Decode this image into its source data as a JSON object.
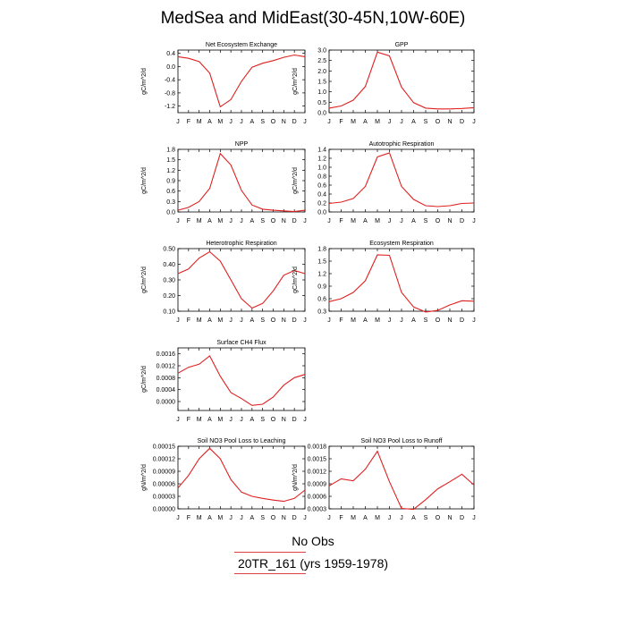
{
  "title": "MedSea and MidEast(30-45N,10W-60E)",
  "legend": {
    "obs_label": "No Obs",
    "model_label": "20TR_161 (yrs 1959-1978)",
    "line_color": "#e02020"
  },
  "chart_data": [
    {
      "type": "line",
      "title": "Net Ecosystem Exchange",
      "ylabel": "gC/m^2/d",
      "categories": [
        "J",
        "F",
        "M",
        "A",
        "M",
        "J",
        "J",
        "A",
        "S",
        "O",
        "N",
        "D",
        "J"
      ],
      "yticks": [
        "0.4",
        "0.0",
        "-0.4",
        "-0.8",
        "-1.2"
      ],
      "ylim": [
        -1.4,
        0.5
      ],
      "series": [
        {
          "values": [
            0.3,
            0.25,
            0.15,
            -0.2,
            -1.22,
            -1.0,
            -0.45,
            -0.02,
            0.1,
            0.18,
            0.28,
            0.35,
            0.3
          ]
        }
      ]
    },
    {
      "type": "line",
      "title": "GPP",
      "ylabel": "gC/m^2/d",
      "categories": [
        "J",
        "F",
        "M",
        "A",
        "M",
        "J",
        "J",
        "A",
        "S",
        "O",
        "N",
        "D",
        "J"
      ],
      "yticks": [
        "0.0",
        "0.5",
        "1.0",
        "1.5",
        "2.0",
        "2.5",
        "3.0"
      ],
      "ylim": [
        0,
        3.0
      ],
      "series": [
        {
          "values": [
            0.22,
            0.32,
            0.6,
            1.25,
            2.9,
            2.72,
            1.22,
            0.48,
            0.22,
            0.18,
            0.18,
            0.2,
            0.24
          ]
        }
      ]
    },
    {
      "type": "line",
      "title": "NPP",
      "ylabel": "gC/m^2/d",
      "categories": [
        "J",
        "F",
        "M",
        "A",
        "M",
        "J",
        "J",
        "A",
        "S",
        "O",
        "N",
        "D",
        "J"
      ],
      "yticks": [
        "0.0",
        "0.3",
        "0.6",
        "0.9",
        "1.2",
        "1.5",
        "1.8"
      ],
      "ylim": [
        0,
        1.8
      ],
      "series": [
        {
          "values": [
            0.05,
            0.13,
            0.3,
            0.68,
            1.68,
            1.35,
            0.62,
            0.2,
            0.08,
            0.05,
            0.03,
            0.01,
            0.05
          ]
        }
      ]
    },
    {
      "type": "line",
      "title": "Autotrophic Respiration",
      "ylabel": "gC/m^2/d",
      "categories": [
        "J",
        "F",
        "M",
        "A",
        "M",
        "J",
        "J",
        "A",
        "S",
        "O",
        "N",
        "D",
        "J"
      ],
      "yticks": [
        "0.0",
        "0.2",
        "0.4",
        "0.6",
        "0.8",
        "1.0",
        "1.2",
        "1.4"
      ],
      "ylim": [
        0,
        1.4
      ],
      "series": [
        {
          "values": [
            0.19,
            0.22,
            0.3,
            0.57,
            1.23,
            1.32,
            0.57,
            0.28,
            0.14,
            0.12,
            0.14,
            0.19,
            0.2
          ]
        }
      ]
    },
    {
      "type": "line",
      "title": "Heterotrophic Respiration",
      "ylabel": "gC/m^2/d",
      "categories": [
        "J",
        "F",
        "M",
        "A",
        "M",
        "J",
        "J",
        "A",
        "S",
        "O",
        "N",
        "D",
        "J"
      ],
      "yticks": [
        "0.10",
        "0.20",
        "0.30",
        "0.40",
        "0.50"
      ],
      "ylim": [
        0.1,
        0.5
      ],
      "series": [
        {
          "values": [
            0.34,
            0.37,
            0.44,
            0.48,
            0.42,
            0.3,
            0.18,
            0.12,
            0.15,
            0.23,
            0.33,
            0.36,
            0.34
          ]
        }
      ]
    },
    {
      "type": "line",
      "title": "Ecosystem Respiration",
      "ylabel": "gC/m^2/d",
      "categories": [
        "J",
        "F",
        "M",
        "A",
        "M",
        "J",
        "J",
        "A",
        "S",
        "O",
        "N",
        "D",
        "J"
      ],
      "yticks": [
        "0.3",
        "0.6",
        "0.9",
        "1.2",
        "1.5",
        "1.8"
      ],
      "ylim": [
        0.3,
        1.8
      ],
      "series": [
        {
          "values": [
            0.53,
            0.6,
            0.75,
            1.03,
            1.65,
            1.64,
            0.75,
            0.4,
            0.28,
            0.32,
            0.45,
            0.55,
            0.54
          ]
        }
      ]
    },
    {
      "type": "line",
      "title": "Surface CH4 Flux",
      "ylabel": "gC/m^2/d",
      "categories": [
        "J",
        "F",
        "M",
        "A",
        "M",
        "J",
        "J",
        "A",
        "S",
        "O",
        "N",
        "D",
        "J"
      ],
      "yticks": [
        "0.0000",
        "0.0004",
        "0.0008",
        "0.0012",
        "0.0016"
      ],
      "ylim": [
        -0.0003,
        0.0018
      ],
      "series": [
        {
          "values": [
            0.00095,
            0.00115,
            0.00125,
            0.00153,
            0.00085,
            0.0003,
            0.0001,
            -0.00013,
            -9e-05,
            0.00015,
            0.00055,
            0.0008,
            0.00091
          ]
        }
      ]
    },
    {
      "type": "line",
      "title": "Soil NO3 Pool Loss to Leaching",
      "ylabel": "gN/m^2/d",
      "categories": [
        "J",
        "F",
        "M",
        "A",
        "M",
        "J",
        "J",
        "A",
        "S",
        "O",
        "N",
        "D",
        "J"
      ],
      "yticks": [
        "0.00000",
        "0.00003",
        "0.00006",
        "0.00009",
        "0.00012",
        "0.00015"
      ],
      "ylim": [
        0,
        0.00015
      ],
      "series": [
        {
          "values": [
            5e-05,
            8e-05,
            0.00012,
            0.000145,
            0.00012,
            7e-05,
            4e-05,
            3e-05,
            2.5e-05,
            2.1e-05,
            1.8e-05,
            2.5e-05,
            4.5e-05
          ]
        }
      ]
    },
    {
      "type": "line",
      "title": "Soil NO3 Pool Loss to Runoff",
      "ylabel": "gN/m^2/d",
      "categories": [
        "J",
        "F",
        "M",
        "A",
        "M",
        "J",
        "J",
        "A",
        "S",
        "O",
        "N",
        "D",
        "J"
      ],
      "yticks": [
        "0.0003",
        "0.0006",
        "0.0009",
        "0.0012",
        "0.0015",
        "0.0018"
      ],
      "ylim": [
        0.0003,
        0.0018
      ],
      "series": [
        {
          "values": [
            0.00085,
            0.00102,
            0.00097,
            0.00125,
            0.00168,
            0.00095,
            0.00031,
            0.00029,
            0.00052,
            0.00078,
            0.00095,
            0.00113,
            0.00087
          ]
        }
      ]
    }
  ]
}
